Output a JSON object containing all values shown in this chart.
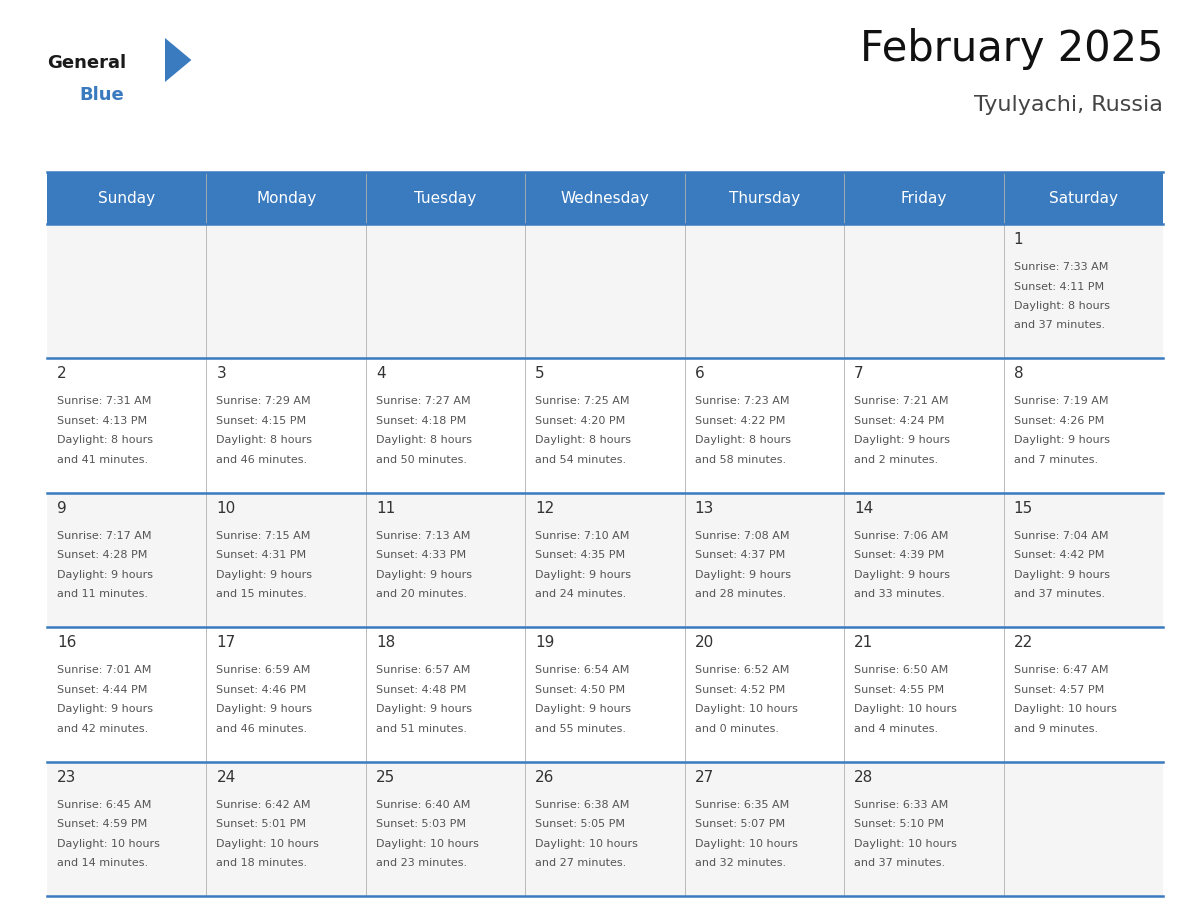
{
  "title": "February 2025",
  "subtitle": "Tyulyachi, Russia",
  "header_color": "#3a7bbf",
  "header_text_color": "#ffffff",
  "day_names": [
    "Sunday",
    "Monday",
    "Tuesday",
    "Wednesday",
    "Thursday",
    "Friday",
    "Saturday"
  ],
  "bg_color": "#ffffff",
  "separator_color": "#3a7bbf",
  "day_num_color": "#333333",
  "info_text_color": "#555555",
  "title_color": "#111111",
  "subtitle_color": "#444444",
  "calendar": [
    [
      null,
      null,
      null,
      null,
      null,
      null,
      {
        "day": 1,
        "sunrise": "7:33 AM",
        "sunset": "4:11 PM",
        "daylight": "8 hours and 37 minutes."
      }
    ],
    [
      {
        "day": 2,
        "sunrise": "7:31 AM",
        "sunset": "4:13 PM",
        "daylight": "8 hours and 41 minutes."
      },
      {
        "day": 3,
        "sunrise": "7:29 AM",
        "sunset": "4:15 PM",
        "daylight": "8 hours and 46 minutes."
      },
      {
        "day": 4,
        "sunrise": "7:27 AM",
        "sunset": "4:18 PM",
        "daylight": "8 hours and 50 minutes."
      },
      {
        "day": 5,
        "sunrise": "7:25 AM",
        "sunset": "4:20 PM",
        "daylight": "8 hours and 54 minutes."
      },
      {
        "day": 6,
        "sunrise": "7:23 AM",
        "sunset": "4:22 PM",
        "daylight": "8 hours and 58 minutes."
      },
      {
        "day": 7,
        "sunrise": "7:21 AM",
        "sunset": "4:24 PM",
        "daylight": "9 hours and 2 minutes."
      },
      {
        "day": 8,
        "sunrise": "7:19 AM",
        "sunset": "4:26 PM",
        "daylight": "9 hours and 7 minutes."
      }
    ],
    [
      {
        "day": 9,
        "sunrise": "7:17 AM",
        "sunset": "4:28 PM",
        "daylight": "9 hours and 11 minutes."
      },
      {
        "day": 10,
        "sunrise": "7:15 AM",
        "sunset": "4:31 PM",
        "daylight": "9 hours and 15 minutes."
      },
      {
        "day": 11,
        "sunrise": "7:13 AM",
        "sunset": "4:33 PM",
        "daylight": "9 hours and 20 minutes."
      },
      {
        "day": 12,
        "sunrise": "7:10 AM",
        "sunset": "4:35 PM",
        "daylight": "9 hours and 24 minutes."
      },
      {
        "day": 13,
        "sunrise": "7:08 AM",
        "sunset": "4:37 PM",
        "daylight": "9 hours and 28 minutes."
      },
      {
        "day": 14,
        "sunrise": "7:06 AM",
        "sunset": "4:39 PM",
        "daylight": "9 hours and 33 minutes."
      },
      {
        "day": 15,
        "sunrise": "7:04 AM",
        "sunset": "4:42 PM",
        "daylight": "9 hours and 37 minutes."
      }
    ],
    [
      {
        "day": 16,
        "sunrise": "7:01 AM",
        "sunset": "4:44 PM",
        "daylight": "9 hours and 42 minutes."
      },
      {
        "day": 17,
        "sunrise": "6:59 AM",
        "sunset": "4:46 PM",
        "daylight": "9 hours and 46 minutes."
      },
      {
        "day": 18,
        "sunrise": "6:57 AM",
        "sunset": "4:48 PM",
        "daylight": "9 hours and 51 minutes."
      },
      {
        "day": 19,
        "sunrise": "6:54 AM",
        "sunset": "4:50 PM",
        "daylight": "9 hours and 55 minutes."
      },
      {
        "day": 20,
        "sunrise": "6:52 AM",
        "sunset": "4:52 PM",
        "daylight": "10 hours and 0 minutes."
      },
      {
        "day": 21,
        "sunrise": "6:50 AM",
        "sunset": "4:55 PM",
        "daylight": "10 hours and 4 minutes."
      },
      {
        "day": 22,
        "sunrise": "6:47 AM",
        "sunset": "4:57 PM",
        "daylight": "10 hours and 9 minutes."
      }
    ],
    [
      {
        "day": 23,
        "sunrise": "6:45 AM",
        "sunset": "4:59 PM",
        "daylight": "10 hours and 14 minutes."
      },
      {
        "day": 24,
        "sunrise": "6:42 AM",
        "sunset": "5:01 PM",
        "daylight": "10 hours and 18 minutes."
      },
      {
        "day": 25,
        "sunrise": "6:40 AM",
        "sunset": "5:03 PM",
        "daylight": "10 hours and 23 minutes."
      },
      {
        "day": 26,
        "sunrise": "6:38 AM",
        "sunset": "5:05 PM",
        "daylight": "10 hours and 27 minutes."
      },
      {
        "day": 27,
        "sunrise": "6:35 AM",
        "sunset": "5:07 PM",
        "daylight": "10 hours and 32 minutes."
      },
      {
        "day": 28,
        "sunrise": "6:33 AM",
        "sunset": "5:10 PM",
        "daylight": "10 hours and 37 minutes."
      },
      null
    ]
  ],
  "num_rows": 5,
  "num_cols": 7,
  "fig_width": 11.88,
  "fig_height": 9.18,
  "dpi": 100
}
